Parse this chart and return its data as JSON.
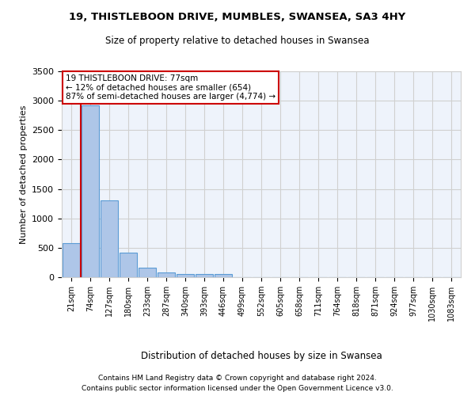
{
  "title_line1": "19, THISTLEBOON DRIVE, MUMBLES, SWANSEA, SA3 4HY",
  "title_line2": "Size of property relative to detached houses in Swansea",
  "xlabel": "Distribution of detached houses by size in Swansea",
  "ylabel": "Number of detached properties",
  "footer_line1": "Contains HM Land Registry data © Crown copyright and database right 2024.",
  "footer_line2": "Contains public sector information licensed under the Open Government Licence v3.0.",
  "categories": [
    "21sqm",
    "74sqm",
    "127sqm",
    "180sqm",
    "233sqm",
    "287sqm",
    "340sqm",
    "393sqm",
    "446sqm",
    "499sqm",
    "552sqm",
    "605sqm",
    "658sqm",
    "711sqm",
    "764sqm",
    "818sqm",
    "871sqm",
    "924sqm",
    "977sqm",
    "1030sqm",
    "1083sqm"
  ],
  "values": [
    580,
    2920,
    1310,
    415,
    160,
    85,
    60,
    55,
    50,
    0,
    0,
    0,
    0,
    0,
    0,
    0,
    0,
    0,
    0,
    0,
    0
  ],
  "bar_color": "#aec6e8",
  "bar_edge_color": "#5b9bd5",
  "grid_color": "#d0d0d0",
  "background_color": "#eef3fb",
  "annotation_box_color": "#cc0000",
  "property_line_color": "#cc0000",
  "property_label": "19 THISTLEBOON DRIVE: 77sqm",
  "smaller_pct": "12%",
  "smaller_count": "654",
  "larger_pct": "87%",
  "larger_count": "4,774",
  "ylim": [
    0,
    3500
  ],
  "yticks": [
    0,
    500,
    1000,
    1500,
    2000,
    2500,
    3000,
    3500
  ],
  "figsize": [
    6.0,
    5.0
  ],
  "dpi": 100
}
